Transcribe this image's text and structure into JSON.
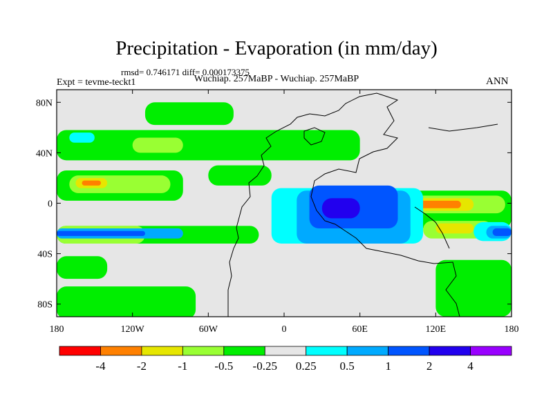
{
  "title": "Precipitation - Evaporation (in mm/day)",
  "stats_line": "rmsd= 0.746171 diff= 0.000173375",
  "case_line": "Wuchiap. 257MaBP - Wuchiap. 257MaBP",
  "expt_line": "Expt = tevme-teckt1",
  "season": "ANN",
  "chart_data": {
    "type": "heatmap",
    "projection": "cylindrical-equidistant",
    "xlim": [
      -180,
      180
    ],
    "ylim": [
      -90,
      90
    ],
    "x_ticks": [
      {
        "value": -180,
        "label": "180"
      },
      {
        "value": -120,
        "label": "120W"
      },
      {
        "value": -60,
        "label": "60W"
      },
      {
        "value": 0,
        "label": "0"
      },
      {
        "value": 60,
        "label": "60E"
      },
      {
        "value": 120,
        "label": "120E"
      },
      {
        "value": 180,
        "label": "180"
      }
    ],
    "y_ticks": [
      {
        "value": 80,
        "label": "80N"
      },
      {
        "value": 40,
        "label": "40N"
      },
      {
        "value": 0,
        "label": "0"
      },
      {
        "value": -40,
        "label": "40S"
      },
      {
        "value": -80,
        "label": "80S"
      }
    ],
    "colorbar": {
      "orientation": "horizontal",
      "boundaries": [
        "-4",
        "-2",
        "-1",
        "-0.5",
        "-0.25",
        "0.25",
        "0.5",
        "1",
        "2",
        "4"
      ],
      "colors": [
        "#ff0000",
        "#ff8000",
        "#e6e600",
        "#99ff33",
        "#00ee00",
        "#e6e6e6",
        "#00ffff",
        "#00aaff",
        "#0055ff",
        "#2200ee",
        "#9900ff"
      ]
    },
    "field_regions": [
      {
        "level": 4,
        "lon": [
          -180,
          -20
        ],
        "lat": [
          -32,
          -18
        ]
      },
      {
        "level": 4,
        "lon": [
          -180,
          -140
        ],
        "lat": [
          -60,
          -42
        ]
      },
      {
        "level": 4,
        "lon": [
          -180,
          -80
        ],
        "lat": [
          2,
          26
        ]
      },
      {
        "level": 4,
        "lon": [
          -180,
          60
        ],
        "lat": [
          34,
          58
        ]
      },
      {
        "level": 4,
        "lon": [
          -110,
          -40
        ],
        "lat": [
          62,
          80
        ]
      },
      {
        "level": 4,
        "lon": [
          -180,
          -70
        ],
        "lat": [
          -92,
          -66
        ]
      },
      {
        "level": 4,
        "lon": [
          30,
          180
        ],
        "lat": [
          -20,
          10
        ]
      },
      {
        "level": 4,
        "lon": [
          120,
          180
        ],
        "lat": [
          -90,
          -45
        ]
      },
      {
        "level": 4,
        "lon": [
          -60,
          -10
        ],
        "lat": [
          14,
          30
        ]
      },
      {
        "level": 3,
        "lon": [
          -180,
          -110
        ],
        "lat": [
          -32,
          -18
        ]
      },
      {
        "level": 3,
        "lon": [
          -170,
          -90
        ],
        "lat": [
          8,
          22
        ]
      },
      {
        "level": 3,
        "lon": [
          110,
          165
        ],
        "lat": [
          -28,
          -14
        ]
      },
      {
        "level": 3,
        "lon": [
          90,
          175
        ],
        "lat": [
          -8,
          6
        ]
      },
      {
        "level": 3,
        "lon": [
          -120,
          -80
        ],
        "lat": [
          40,
          52
        ]
      },
      {
        "level": 2,
        "lon": [
          -165,
          -140
        ],
        "lat": [
          12,
          20
        ]
      },
      {
        "level": 2,
        "lon": [
          95,
          150
        ],
        "lat": [
          -6,
          4
        ]
      },
      {
        "level": 2,
        "lon": [
          120,
          150
        ],
        "lat": [
          -24,
          -16
        ]
      },
      {
        "level": 1,
        "lon": [
          -160,
          -145
        ],
        "lat": [
          14,
          18
        ]
      },
      {
        "level": 1,
        "lon": [
          105,
          140
        ],
        "lat": [
          -4,
          2
        ]
      },
      {
        "level": 6,
        "lon": [
          -10,
          110
        ],
        "lat": [
          -32,
          12
        ]
      },
      {
        "level": 6,
        "lon": [
          150,
          180
        ],
        "lat": [
          -30,
          -15
        ]
      },
      {
        "level": 6,
        "lon": [
          -170,
          -150
        ],
        "lat": [
          48,
          56
        ]
      },
      {
        "level": 7,
        "lon": [
          10,
          100
        ],
        "lat": [
          -32,
          10
        ]
      },
      {
        "level": 7,
        "lon": [
          -180,
          -80
        ],
        "lat": [
          -28,
          -20
        ]
      },
      {
        "level": 7,
        "lon": [
          160,
          180
        ],
        "lat": [
          -28,
          -18
        ]
      },
      {
        "level": 8,
        "lon": [
          20,
          90
        ],
        "lat": [
          -20,
          14
        ]
      },
      {
        "level": 8,
        "lon": [
          -180,
          -110
        ],
        "lat": [
          -26,
          -22
        ]
      },
      {
        "level": 8,
        "lon": [
          165,
          180
        ],
        "lat": [
          -26,
          -20
        ]
      },
      {
        "level": 9,
        "lon": [
          30,
          60
        ],
        "lat": [
          -12,
          4
        ]
      }
    ]
  }
}
